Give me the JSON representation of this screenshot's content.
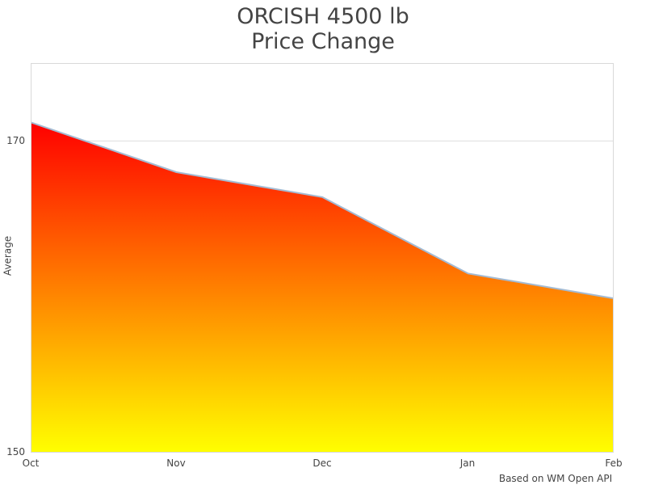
{
  "title": {
    "line1": "ORCISH 4500 lb",
    "line2": "Price Change"
  },
  "caption": "Based on WM Open API",
  "colors": {
    "background": "#ffffff",
    "title_text": "#444444",
    "axis_text": "#444444",
    "line_stroke": "#a4bbd3",
    "grid": "#dedede",
    "plot_border": "#d9d9d9",
    "gradient_top": "#ff0000",
    "gradient_bottom": "#ffff00"
  },
  "chart_data": {
    "type": "area",
    "title": "ORCISH 4500 lb Price Change",
    "x": [
      "Oct",
      "Nov",
      "Dec",
      "Jan",
      "Feb"
    ],
    "series": [
      {
        "name": "Average",
        "values": [
          171.2,
          168.0,
          166.4,
          161.5,
          159.9
        ]
      }
    ],
    "xlabel": "",
    "ylabel": "Average",
    "ylim": [
      150,
      175
    ],
    "yticks": [
      150,
      170
    ],
    "grid": "horizontal gridline at 170 only; plot framed with light gray border",
    "legend": "none",
    "fill": "vertical linear gradient red (top of area) to yellow (baseline), stroked with light blue line",
    "annotation": "Based on WM Open API"
  }
}
